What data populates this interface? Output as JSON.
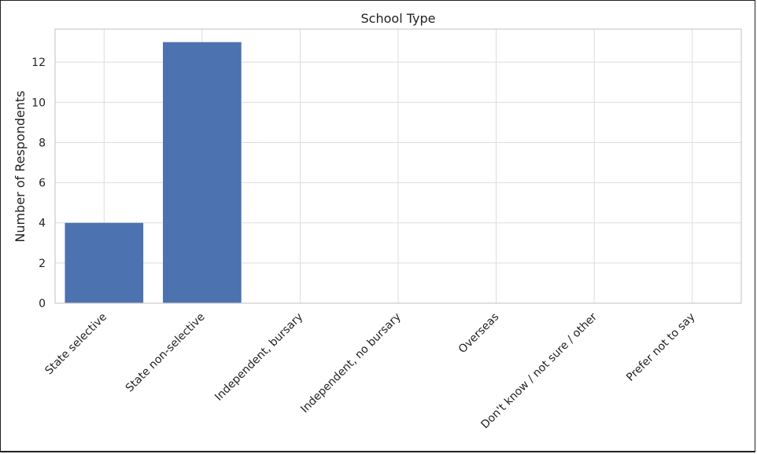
{
  "chart_data": {
    "type": "bar",
    "title": "School Type",
    "xlabel": "",
    "ylabel": "Number of Respondents",
    "categories": [
      "State selective",
      "State non-selective",
      "Independent, bursary",
      "Independent, no bursary",
      "Overseas",
      "Don't know / not sure / other",
      "Prefer not to say"
    ],
    "values": [
      4,
      13,
      0,
      0,
      0,
      0,
      0
    ],
    "ylim": [
      0,
      13.65
    ],
    "yticks": [
      0,
      2,
      4,
      6,
      8,
      10,
      12
    ],
    "grid": true,
    "bar_color": "#4c72b0",
    "grid_color": "#dddddd"
  }
}
